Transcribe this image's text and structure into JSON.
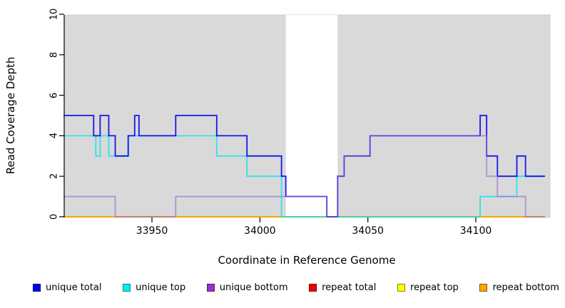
{
  "chart_data": {
    "type": "line",
    "title": "",
    "xlabel": "Coordinate in Reference Genome",
    "ylabel": "Read Coverage Depth",
    "xlim": [
      33909,
      34134
    ],
    "ylim": [
      0,
      10
    ],
    "x_ticks": [
      33950,
      34000,
      34050,
      34100
    ],
    "y_ticks": [
      0,
      2,
      4,
      6,
      8,
      10
    ],
    "grid": "off",
    "plot_background_color": "#d9d9d9",
    "unshaded_band": {
      "from": 34012,
      "to": 34036
    },
    "legend_position": "bottom",
    "series": [
      {
        "name": "unique total",
        "color": "#0000EE",
        "segments": [
          [
            33909,
            33923,
            5
          ],
          [
            33923,
            33926,
            4
          ],
          [
            33926,
            33930,
            5
          ],
          [
            33930,
            33933,
            4
          ],
          [
            33933,
            33939,
            3
          ],
          [
            33939,
            33942,
            4
          ],
          [
            33942,
            33944,
            5
          ],
          [
            33944,
            33961,
            4
          ],
          [
            33961,
            33980,
            5
          ],
          [
            33980,
            33994,
            4
          ],
          [
            33994,
            34010,
            3
          ],
          [
            34010,
            34012,
            2
          ],
          [
            34012,
            34031,
            1
          ],
          [
            34031,
            34036,
            0
          ],
          [
            34036,
            34039,
            2
          ],
          [
            34039,
            34051,
            3
          ],
          [
            34051,
            34102,
            4
          ],
          [
            34102,
            34105,
            5
          ],
          [
            34105,
            34110,
            3
          ],
          [
            34110,
            34119,
            2
          ],
          [
            34119,
            34123,
            3
          ],
          [
            34123,
            34132,
            2
          ]
        ]
      },
      {
        "name": "unique top",
        "color": "#00E5EE",
        "segments": [
          [
            33909,
            33924,
            4
          ],
          [
            33924,
            33926,
            3
          ],
          [
            33926,
            33930,
            4
          ],
          [
            33930,
            33939,
            3
          ],
          [
            33939,
            33980,
            4
          ],
          [
            33980,
            33994,
            3
          ],
          [
            33994,
            34010,
            2
          ],
          [
            34010,
            34102,
            0
          ],
          [
            34102,
            34119,
            1
          ],
          [
            34119,
            34132,
            2
          ]
        ]
      },
      {
        "name": "unique bottom",
        "color": "#9663D9",
        "segments": [
          [
            33909,
            33933,
            1
          ],
          [
            33933,
            33961,
            0
          ],
          [
            33961,
            34031,
            1
          ],
          [
            34031,
            34036,
            0
          ],
          [
            34036,
            34039,
            2
          ],
          [
            34039,
            34051,
            3
          ],
          [
            34051,
            34105,
            4
          ],
          [
            34105,
            34110,
            2
          ],
          [
            34110,
            34123,
            1
          ],
          [
            34123,
            34132,
            0
          ]
        ]
      },
      {
        "name": "repeat total",
        "color": "#DD0000",
        "segments": [
          [
            33909,
            34132,
            0
          ]
        ]
      },
      {
        "name": "repeat top",
        "color": "#FFFF00",
        "segments": [
          [
            33909,
            34132,
            0
          ]
        ]
      },
      {
        "name": "repeat bottom",
        "color": "#FFA500",
        "segments": [
          [
            33909,
            34132,
            0
          ]
        ]
      }
    ],
    "legend": [
      {
        "label": "unique total",
        "color": "#0000EE"
      },
      {
        "label": "unique top",
        "color": "#00EEEE"
      },
      {
        "label": "unique bottom",
        "color": "#9932CC"
      },
      {
        "label": "repeat total",
        "color": "#EE0000"
      },
      {
        "label": "repeat top",
        "color": "#FFFF00"
      },
      {
        "label": "repeat bottom",
        "color": "#FFA500"
      }
    ]
  }
}
